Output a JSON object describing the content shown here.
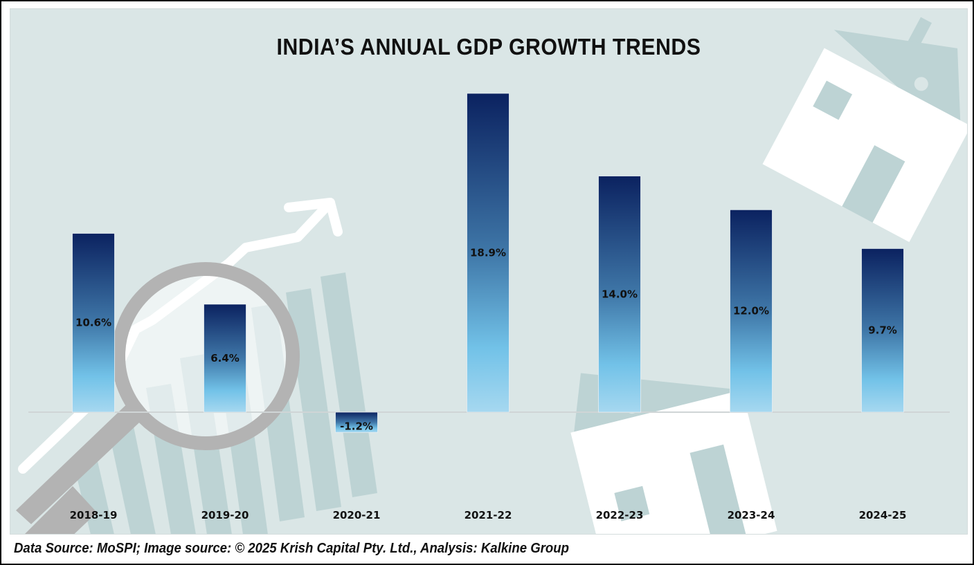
{
  "chart_data": {
    "type": "bar",
    "title": "INDIA’S ANNUAL GDP GROWTH TRENDS",
    "xlabel": "",
    "ylabel": "",
    "categories": [
      "2018-19",
      "2019-20",
      "2020-21",
      "2021-22",
      "2022-23",
      "2023-24",
      "2024-25"
    ],
    "values": [
      10.6,
      6.4,
      -1.2,
      18.9,
      14.0,
      12.0,
      9.7
    ],
    "data_labels": [
      "10.6%",
      "6.4%",
      "-1.2%",
      "18.9%",
      "14.0%",
      "12.0%",
      "9.7%"
    ],
    "value_unit": "%",
    "ylim": [
      -1.2,
      18.9
    ],
    "grid": false,
    "legend": "none",
    "bar_gradient": {
      "top": "#0b2260",
      "mid": "#3f77a8",
      "low": "#72c2e8",
      "bottom": "#a6d8f0"
    }
  },
  "footer": {
    "source_text": "Data Source: MoSPI; Image source: © 2025 Krish Capital Pty. Ltd., Analysis: Kalkine Group"
  },
  "colors": {
    "panel_background": "#dae6e6",
    "illustration_shade": "#bdd3d4",
    "magnifier_gray": "#b3b3b3"
  }
}
